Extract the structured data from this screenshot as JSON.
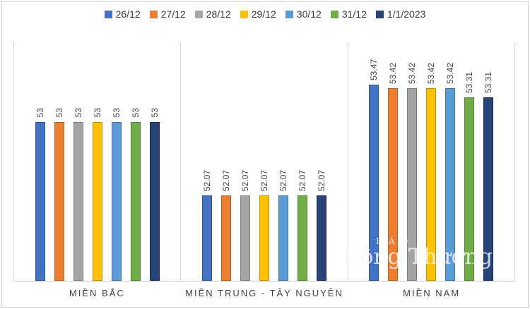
{
  "chart_data": {
    "type": "bar",
    "title": "",
    "categories": [
      "MIỀN BẮC",
      "MIỀN TRUNG - TÂY NGUYÊN",
      "MIỀN NAM"
    ],
    "series": [
      {
        "name": "26/12",
        "color": "#4472C4",
        "border_color": "#2E5395",
        "values": [
          53,
          52.07,
          53.47
        ]
      },
      {
        "name": "27/12",
        "color": "#ED7D31",
        "border_color": "#BC5E1C",
        "values": [
          53,
          52.07,
          53.42
        ]
      },
      {
        "name": "28/12",
        "color": "#A5A5A5",
        "border_color": "#7F7F7F",
        "values": [
          53,
          52.07,
          53.42
        ]
      },
      {
        "name": "29/12",
        "color": "#FFC000",
        "border_color": "#BF9000",
        "values": [
          53,
          52.07,
          53.42
        ]
      },
      {
        "name": "30/12",
        "color": "#5B9BD5",
        "border_color": "#41719C",
        "values": [
          53,
          52.07,
          53.42
        ]
      },
      {
        "name": "31/12",
        "color": "#70AD47",
        "border_color": "#548235",
        "values": [
          53,
          52.07,
          53.31
        ]
      },
      {
        "name": "1/1/2023",
        "color": "#264478",
        "border_color": "#17294A",
        "values": [
          53,
          52.07,
          53.31
        ]
      }
    ],
    "ylim": [
      51,
      54
    ],
    "grid": false,
    "y_axis_visible": false,
    "legend_position": "top",
    "data_labels": "rotated-vertical",
    "axis_line_color": "#D6D6D6"
  },
  "watermark": {
    "line1": "BÁO",
    "line2": "Công Thương"
  }
}
